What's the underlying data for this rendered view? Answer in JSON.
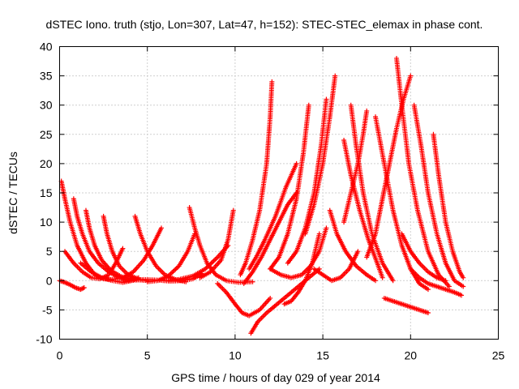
{
  "chart_data": {
    "type": "scatter",
    "title": "dSTEC Iono. truth (stjo, Lon=307, Lat=47, h=152): STEC-STEC_elemax in phase cont.",
    "xlabel": "GPS time / hours of day 029 of year 2014",
    "ylabel": "dSTEC  / TECUs",
    "xlim": [
      0,
      25
    ],
    "ylim": [
      -10,
      40
    ],
    "xticks": [
      0,
      5,
      10,
      15,
      20,
      25
    ],
    "yticks": [
      -10,
      -5,
      0,
      5,
      10,
      15,
      20,
      25,
      30,
      35,
      40
    ],
    "grid": true,
    "marker": "plus",
    "color": "#ff0000",
    "series": [
      {
        "x": [
          0.0,
          0.3,
          0.6,
          0.9,
          1.2,
          1.4
        ],
        "y": [
          0.0,
          -0.3,
          -0.7,
          -1.2,
          -1.5,
          -1.2
        ]
      },
      {
        "x": [
          0.1,
          0.3,
          0.6,
          1.0,
          1.5,
          2.0,
          2.5,
          3.0
        ],
        "y": [
          17.0,
          14.0,
          10.0,
          6.0,
          3.0,
          1.0,
          0.3,
          0.2
        ]
      },
      {
        "x": [
          0.8,
          1.0,
          1.3,
          1.7,
          2.2,
          2.8,
          3.4,
          4.0
        ],
        "y": [
          14.0,
          11.0,
          8.0,
          5.0,
          3.0,
          1.5,
          0.5,
          0.0
        ]
      },
      {
        "x": [
          0.3,
          0.8,
          1.3,
          1.8,
          2.3,
          2.8,
          3.2,
          3.6
        ],
        "y": [
          5.0,
          3.0,
          1.5,
          0.5,
          0.3,
          1.0,
          3.0,
          5.5
        ]
      },
      {
        "x": [
          1.5,
          1.7,
          2.0,
          2.4,
          2.9,
          3.5,
          4.2,
          5.0
        ],
        "y": [
          12.0,
          9.0,
          6.0,
          3.5,
          1.8,
          0.7,
          0.2,
          0.0
        ]
      },
      {
        "x": [
          2.5,
          2.7,
          3.0,
          3.4,
          3.9,
          4.5
        ],
        "y": [
          11.0,
          8.0,
          5.0,
          2.5,
          1.0,
          0.3
        ]
      },
      {
        "x": [
          1.2,
          1.8,
          2.4,
          3.0,
          3.6,
          4.1,
          4.5
        ],
        "y": [
          3.0,
          1.5,
          0.5,
          0.0,
          -0.3,
          0.0,
          0.5
        ]
      },
      {
        "x": [
          4.3,
          4.6,
          5.0,
          5.5,
          6.0,
          6.6,
          7.2
        ],
        "y": [
          11.0,
          8.0,
          5.0,
          2.5,
          1.0,
          0.2,
          -0.2
        ]
      },
      {
        "x": [
          3.0,
          3.6,
          4.2,
          4.8,
          5.3,
          5.8
        ],
        "y": [
          0.2,
          0.5,
          1.5,
          3.5,
          6.0,
          9.0
        ]
      },
      {
        "x": [
          5.0,
          5.6,
          6.2,
          6.8,
          7.3,
          7.7
        ],
        "y": [
          -0.2,
          0.0,
          0.8,
          2.5,
          5.0,
          8.0
        ]
      },
      {
        "x": [
          4.0,
          4.8,
          5.6,
          6.3,
          7.0,
          7.6,
          8.1
        ],
        "y": [
          0.0,
          0.2,
          0.1,
          -0.1,
          0.0,
          0.3,
          1.2
        ]
      },
      {
        "x": [
          7.4,
          7.7,
          8.0,
          8.4,
          8.9,
          9.5,
          10.2,
          11.0
        ],
        "y": [
          12.5,
          9.0,
          6.0,
          3.0,
          1.0,
          0.0,
          -0.3,
          -0.2
        ]
      },
      {
        "x": [
          6.0,
          6.8,
          7.6,
          8.3,
          9.0,
          9.6
        ],
        "y": [
          0.0,
          0.2,
          0.8,
          2.0,
          4.0,
          6.0
        ]
      },
      {
        "x": [
          8.0,
          8.6,
          9.2,
          9.6,
          9.9
        ],
        "y": [
          0.5,
          1.5,
          3.5,
          7.0,
          12.0
        ]
      },
      {
        "x": [
          9.0,
          9.5,
          10.0,
          10.4,
          10.8,
          11.4,
          12.0
        ],
        "y": [
          -0.5,
          -2.0,
          -4.0,
          -5.5,
          -6.0,
          -5.0,
          -3.0
        ]
      },
      {
        "x": [
          10.3,
          10.6,
          11.0,
          11.4,
          11.8,
          12.0,
          12.1
        ],
        "y": [
          1.0,
          3.0,
          7.0,
          12.0,
          20.0,
          28.0,
          34.0
        ]
      },
      {
        "x": [
          10.5,
          11.0,
          11.5,
          12.0,
          12.5,
          13.0,
          13.5
        ],
        "y": [
          -0.5,
          1.5,
          4.0,
          7.0,
          10.0,
          13.0,
          15.0
        ]
      },
      {
        "x": [
          10.9,
          11.3,
          11.8,
          12.4,
          13.0,
          13.6,
          14.2,
          14.8
        ],
        "y": [
          -9.0,
          -7.0,
          -5.5,
          -4.0,
          -2.5,
          -1.0,
          0.5,
          2.0
        ]
      },
      {
        "x": [
          10.8,
          11.2,
          11.7,
          12.3,
          12.9,
          13.5
        ],
        "y": [
          2.0,
          4.0,
          7.0,
          11.0,
          16.0,
          20.0
        ]
      },
      {
        "x": [
          12.0,
          12.5,
          13.0,
          13.5,
          13.9,
          14.2
        ],
        "y": [
          2.0,
          4.0,
          8.0,
          14.0,
          22.0,
          30.0
        ]
      },
      {
        "x": [
          12.8,
          13.2,
          13.6,
          14.0,
          14.4,
          14.8
        ],
        "y": [
          -4.0,
          -3.5,
          -2.0,
          0.0,
          3.0,
          8.0
        ]
      },
      {
        "x": [
          13.0,
          13.5,
          14.0,
          14.5,
          14.9,
          15.2
        ],
        "y": [
          3.0,
          5.0,
          9.0,
          15.0,
          23.0,
          31.0
        ]
      },
      {
        "x": [
          12.0,
          12.6,
          13.2,
          13.8,
          14.3,
          14.8,
          15.2
        ],
        "y": [
          2.0,
          1.0,
          0.5,
          1.0,
          2.5,
          5.0,
          9.0
        ]
      },
      {
        "x": [
          14.0,
          14.5,
          15.0,
          15.4,
          15.7
        ],
        "y": [
          8.0,
          13.0,
          20.0,
          28.0,
          35.0
        ]
      },
      {
        "x": [
          15.4,
          15.8,
          16.3,
          16.9,
          17.5,
          18.0
        ],
        "y": [
          12.0,
          8.0,
          5.0,
          2.5,
          1.0,
          0.0
        ]
      },
      {
        "x": [
          14.5,
          15.0,
          15.5,
          16.0,
          16.5,
          17.0
        ],
        "y": [
          2.0,
          1.0,
          0.0,
          0.5,
          2.0,
          5.0
        ]
      },
      {
        "x": [
          16.2,
          16.6,
          17.0,
          17.3,
          17.5
        ],
        "y": [
          10.0,
          15.0,
          20.0,
          25.0,
          29.0
        ]
      },
      {
        "x": [
          16.6,
          16.9,
          17.3,
          17.8,
          18.4,
          19.0
        ],
        "y": [
          30.0,
          23.0,
          15.0,
          8.0,
          3.0,
          0.0
        ]
      },
      {
        "x": [
          16.2,
          16.6,
          17.1,
          17.6,
          18.1,
          18.4
        ],
        "y": [
          24.0,
          18.0,
          12.0,
          7.0,
          3.0,
          0.5
        ]
      },
      {
        "x": [
          17.5,
          18.0,
          18.4,
          18.8,
          19.2,
          19.6,
          20.0
        ],
        "y": [
          4.0,
          8.0,
          14.0,
          20.0,
          26.0,
          31.0,
          35.0
        ]
      },
      {
        "x": [
          18.0,
          18.5,
          19.0,
          19.5,
          20.0,
          20.5,
          21.0
        ],
        "y": [
          28.0,
          20.0,
          12.0,
          6.0,
          2.0,
          -0.5,
          -1.5
        ]
      },
      {
        "x": [
          18.5,
          19.0,
          19.5,
          20.0,
          20.5,
          21.0
        ],
        "y": [
          -3.0,
          -3.5,
          -4.0,
          -4.5,
          -5.0,
          -5.5
        ]
      },
      {
        "x": [
          19.2,
          19.5,
          19.9,
          20.4,
          21.0,
          21.6,
          22.2
        ],
        "y": [
          38.0,
          30.0,
          20.0,
          12.0,
          5.0,
          1.0,
          -1.0
        ]
      },
      {
        "x": [
          20.2,
          20.6,
          21.0,
          21.5,
          22.0,
          22.5,
          23.0
        ],
        "y": [
          30.0,
          23.0,
          15.0,
          8.0,
          3.0,
          0.0,
          -1.0
        ]
      },
      {
        "x": [
          21.3,
          21.6,
          22.0,
          22.4,
          22.8,
          23.0
        ],
        "y": [
          25.0,
          18.0,
          10.0,
          5.0,
          1.5,
          0.5
        ]
      },
      {
        "x": [
          20.0,
          20.5,
          21.0,
          21.5,
          22.0,
          22.5,
          22.9
        ],
        "y": [
          2.0,
          0.5,
          -0.5,
          -1.0,
          -1.5,
          -2.0,
          -2.5
        ]
      },
      {
        "x": [
          19.5,
          20.0,
          20.5,
          21.0,
          21.5,
          22.0
        ],
        "y": [
          8.0,
          5.0,
          3.0,
          1.5,
          0.5,
          0.0
        ]
      }
    ]
  }
}
